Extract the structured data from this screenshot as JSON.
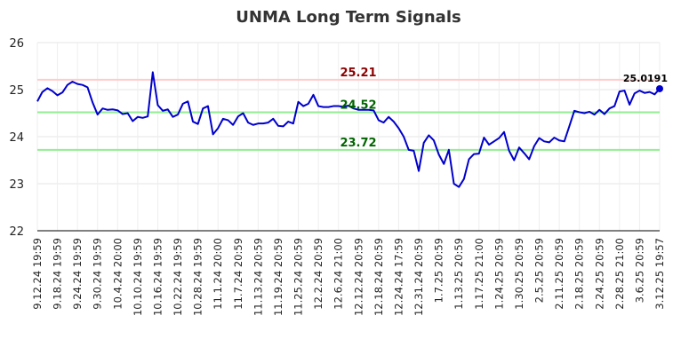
{
  "chart_data": {
    "type": "line",
    "title": "UNMA Long Term Signals",
    "ylim": [
      22,
      26
    ],
    "yticks": [
      "22",
      "23",
      "24",
      "25",
      "26"
    ],
    "grid": true,
    "line_color": "#0000cc",
    "x_tick_labels": [
      "9.12.24 19:59",
      "9.18.24 19:59",
      "9.24.24 19:59",
      "9.30.24 19:59",
      "10.4.24 20:00",
      "10.10.24 19:59",
      "10.16.24 19:59",
      "10.22.24 19:59",
      "10.28.24 19:59",
      "11.1.24 20:00",
      "11.7.24 20:59",
      "11.13.24 20:59",
      "11.19.24 20:59",
      "11.25.24 20:59",
      "12.2.24 20:59",
      "12.6.24 21:00",
      "12.12.24 20:59",
      "12.18.24 20:59",
      "12.24.24 17:59",
      "12.31.24 20:59",
      "1.7.25 20:59",
      "1.13.25 20:59",
      "1.17.25 21:00",
      "1.24.25 20:59",
      "1.30.25 20:59",
      "2.5.25 20:59",
      "2.11.25 20:59",
      "2.18.25 20:59",
      "2.24.25 20:59",
      "2.28.25 21:00",
      "3.6.25 20:59",
      "3.12.25 19:57"
    ],
    "reference_lines": [
      {
        "value": 25.21,
        "label": "25.21",
        "line_color": "#ffcccc",
        "label_color": "#8b0000"
      },
      {
        "value": 24.52,
        "label": "24.52",
        "line_color": "#90ee90",
        "label_color": "#006400"
      },
      {
        "value": 23.72,
        "label": "23.72",
        "line_color": "#90ee90",
        "label_color": "#006400"
      }
    ],
    "last_value_label": "25.0191",
    "values": [
      24.75,
      24.95,
      25.03,
      24.97,
      24.88,
      24.94,
      25.1,
      25.17,
      25.12,
      25.1,
      25.05,
      24.73,
      24.47,
      24.6,
      24.57,
      24.58,
      24.56,
      24.48,
      24.5,
      24.33,
      24.42,
      24.4,
      24.43,
      25.37,
      24.67,
      24.55,
      24.58,
      24.42,
      24.47,
      24.7,
      24.75,
      24.32,
      24.27,
      24.6,
      24.65,
      24.05,
      24.18,
      24.38,
      24.35,
      24.25,
      24.43,
      24.5,
      24.3,
      24.25,
      24.28,
      24.28,
      24.3,
      24.38,
      24.23,
      24.22,
      24.32,
      24.28,
      24.74,
      24.65,
      24.7,
      24.89,
      24.65,
      24.63,
      24.63,
      24.65,
      24.65,
      24.64,
      24.66,
      24.6,
      24.57,
      24.57,
      24.57,
      24.56,
      24.35,
      24.3,
      24.42,
      24.32,
      24.18,
      24.0,
      23.72,
      23.7,
      23.27,
      23.87,
      24.03,
      23.92,
      23.62,
      23.42,
      23.72,
      23.0,
      22.93,
      23.1,
      23.52,
      23.63,
      23.64,
      23.98,
      23.83,
      23.9,
      23.97,
      24.1,
      23.7,
      23.5,
      23.77,
      23.65,
      23.52,
      23.8,
      23.97,
      23.9,
      23.88,
      23.98,
      23.92,
      23.9,
      24.22,
      24.55,
      24.52,
      24.5,
      24.53,
      24.47,
      24.57,
      24.48,
      24.6,
      24.65,
      24.96,
      24.98,
      24.68,
      24.92,
      24.98,
      24.93,
      24.95,
      24.9,
      25.02
    ]
  }
}
